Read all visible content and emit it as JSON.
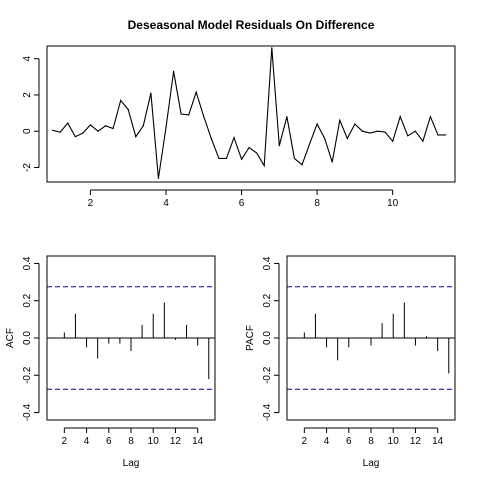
{
  "chart_data": [
    {
      "id": "residuals",
      "type": "line",
      "title": "Deseasonal Model Residuals On Difference",
      "xlabel": "",
      "ylabel": "",
      "xlim": [
        0.85,
        11.65
      ],
      "ylim": [
        -2.8,
        4.7
      ],
      "xticks": [
        2,
        4,
        6,
        8,
        10
      ],
      "yticks": [
        -2,
        0,
        2,
        4
      ],
      "grid": false,
      "series": [
        {
          "x": [
            1.0,
            1.2,
            1.4,
            1.6,
            1.8,
            2.0,
            2.2,
            2.4,
            2.6,
            2.8,
            3.0,
            3.2,
            3.4,
            3.6,
            3.8,
            4.0,
            4.2,
            4.4,
            4.6,
            4.8,
            5.0,
            5.2,
            5.4,
            5.6,
            5.8,
            6.0,
            6.2,
            6.4,
            6.6,
            6.8,
            7.0,
            7.2,
            7.4,
            7.6,
            7.8,
            8.0,
            8.2,
            8.4,
            8.6,
            8.8,
            9.0,
            9.2,
            9.4,
            9.6,
            9.8,
            10.0,
            10.2,
            10.4,
            10.6,
            10.8,
            11.0,
            11.2,
            11.4
          ],
          "values": [
            0.05,
            -0.05,
            0.45,
            -0.3,
            -0.1,
            0.35,
            0.0,
            0.3,
            0.15,
            1.7,
            1.2,
            -0.3,
            0.3,
            2.1,
            -2.6,
            0.2,
            3.3,
            0.95,
            0.9,
            2.15,
            0.8,
            -0.4,
            -1.5,
            -1.5,
            -0.35,
            -1.55,
            -0.9,
            -1.2,
            -1.9,
            4.6,
            -0.8,
            0.8,
            -1.5,
            -1.85,
            -0.7,
            0.4,
            -0.4,
            -1.7,
            0.6,
            -0.4,
            0.4,
            0.0,
            -0.1,
            0.0,
            -0.05,
            -0.55,
            0.8,
            -0.25,
            0.0,
            -0.55,
            0.8,
            -0.2,
            -0.2
          ]
        }
      ]
    },
    {
      "id": "acf",
      "type": "bar",
      "title": "",
      "xlabel": "Lag",
      "ylabel": "ACF",
      "xlim": [
        0.44,
        15.56
      ],
      "ylim": [
        -0.44,
        0.44
      ],
      "xticks": [
        2,
        4,
        6,
        8,
        10,
        12,
        14
      ],
      "yticks": [
        -0.4,
        -0.2,
        0.0,
        0.2,
        0.4
      ],
      "ci": 0.275,
      "lags": [
        1,
        2,
        3,
        4,
        5,
        6,
        7,
        8,
        9,
        10,
        11,
        12,
        13,
        14,
        15
      ],
      "values": [
        0.0,
        0.03,
        0.13,
        -0.05,
        -0.11,
        -0.03,
        -0.03,
        -0.07,
        0.07,
        0.13,
        0.19,
        -0.01,
        0.07,
        -0.04,
        -0.22
      ]
    },
    {
      "id": "pacf",
      "type": "bar",
      "title": "",
      "xlabel": "Lag",
      "ylabel": "PACF",
      "xlim": [
        0.44,
        15.56
      ],
      "ylim": [
        -0.44,
        0.44
      ],
      "xticks": [
        2,
        4,
        6,
        8,
        10,
        12,
        14
      ],
      "yticks": [
        -0.4,
        -0.2,
        0.0,
        0.2,
        0.4
      ],
      "ci": 0.275,
      "lags": [
        1,
        2,
        3,
        4,
        5,
        6,
        7,
        8,
        9,
        10,
        11,
        12,
        13,
        14,
        15
      ],
      "values": [
        0.0,
        0.03,
        0.13,
        -0.05,
        -0.12,
        -0.05,
        0.0,
        -0.04,
        0.08,
        0.13,
        0.19,
        -0.04,
        0.01,
        -0.07,
        -0.19
      ]
    }
  ],
  "colors": {
    "series": "#000000",
    "ci_line": "#00008B",
    "frame": "#000000",
    "background": "#ffffff"
  }
}
